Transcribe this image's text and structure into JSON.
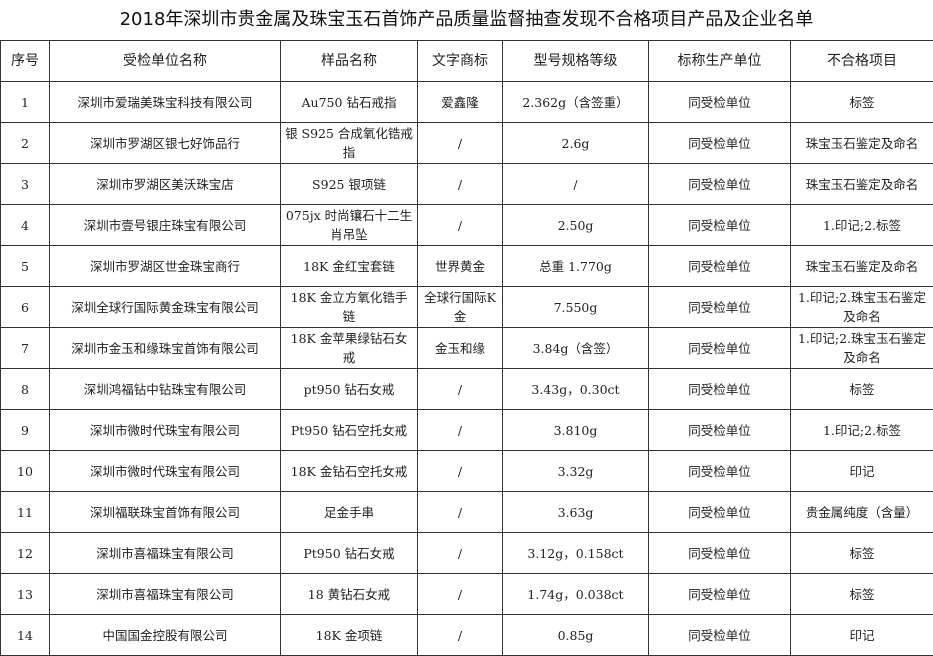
{
  "title": "2018年深圳市贵金属及珠宝玉石首饰产品质量监督抽查发现不合格项目产品及企业名单",
  "headers": [
    "序号",
    "受检单位名称",
    "样品名称",
    "文字商标",
    "型号规格等级",
    "标称生产单位",
    "不合格项目"
  ],
  "rows": [
    [
      "1",
      "深圳市爱瑞美珠宝科技有限公司",
      "Au750 钻石戒指",
      "爱鑫隆",
      "2.362g（含签重）",
      "同受检单位",
      "标签"
    ],
    [
      "2",
      "深圳市罗湖区银七好饰品行",
      "银 S925 合成氧化锆戒指",
      "/",
      "2.6g",
      "同受检单位",
      "珠宝玉石鉴定及命名"
    ],
    [
      "3",
      "深圳市罗湖区美沃珠宝店",
      "S925 银项链",
      "/",
      "/",
      "同受检单位",
      "珠宝玉石鉴定及命名"
    ],
    [
      "4",
      "深圳市壹号银庄珠宝有限公司",
      "075jx 时尚镶石十二生肖吊坠",
      "/",
      "2.50g",
      "同受检单位",
      "1.印记;2.标签"
    ],
    [
      "5",
      "深圳市罗湖区世金珠宝商行",
      "18K 金红宝套链",
      "世界黄金",
      "总重 1.770g",
      "同受检单位",
      "珠宝玉石鉴定及命名"
    ],
    [
      "6",
      "深圳全球行国际黄金珠宝有限公司",
      "18K 金立方氧化锆手链",
      "全球行国际K金",
      "7.550g",
      "同受检单位",
      "1.印记;2.珠宝玉石鉴定及命名"
    ],
    [
      "7",
      "深圳市金玉和缘珠宝首饰有限公司",
      "18K 金苹果绿钻石女戒",
      "金玉和缘",
      "3.84g（含签）",
      "同受检单位",
      "1.印记;2.珠宝玉石鉴定及命名"
    ],
    [
      "8",
      "深圳鸿福钻中钻珠宝有限公司",
      "pt950 钻石女戒",
      "/",
      "3.43g，0.30ct",
      "同受检单位",
      "标签"
    ],
    [
      "9",
      "深圳市微时代珠宝有限公司",
      "Pt950 钻石空托女戒",
      "/",
      "3.810g",
      "同受检单位",
      "1.印记;2.标签"
    ],
    [
      "10",
      "深圳市微时代珠宝有限公司",
      "18K 金钻石空托女戒",
      "/",
      "3.32g",
      "同受检单位",
      "印记"
    ],
    [
      "11",
      "深圳福联珠宝首饰有限公司",
      "足金手串",
      "/",
      "3.63g",
      "同受检单位",
      "贵金属纯度（含量）"
    ],
    [
      "12",
      "深圳市喜福珠宝有限公司",
      "Pt950 钻石女戒",
      "/",
      "3.12g，0.158ct",
      "同受检单位",
      "标签"
    ],
    [
      "13",
      "深圳市喜福珠宝有限公司",
      "18 黄钻石女戒",
      "/",
      "1.74g，0.038ct",
      "同受检单位",
      "标签"
    ],
    [
      "14",
      "中国国金控股有限公司",
      "18K 金项链",
      "/",
      "0.85g",
      "同受检单位",
      "印记"
    ]
  ]
}
